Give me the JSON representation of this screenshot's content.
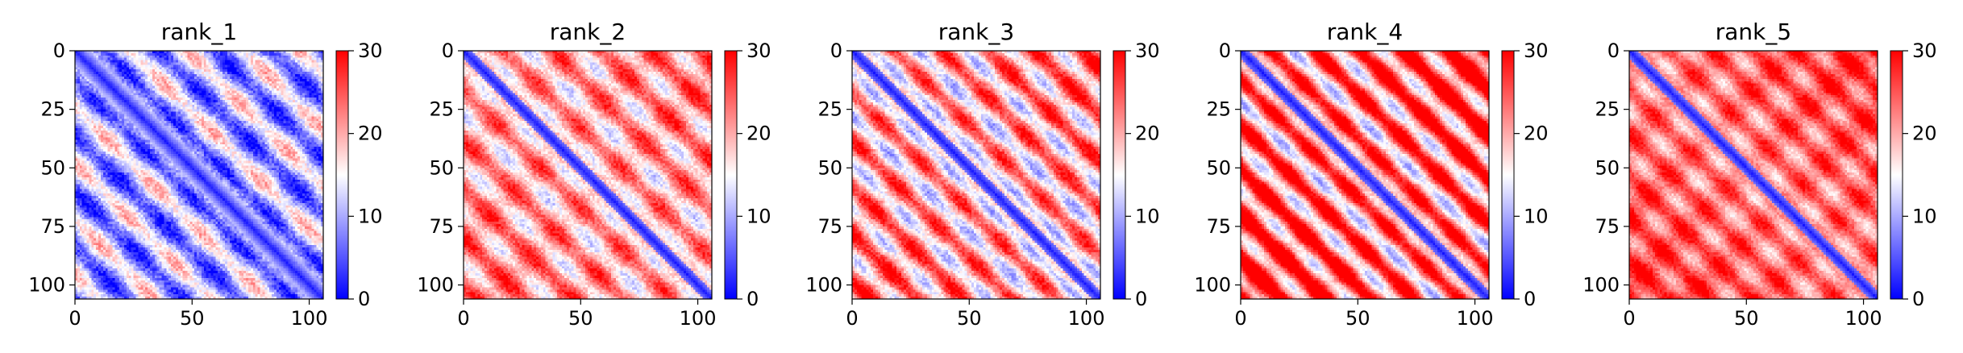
{
  "chart_data": [
    {
      "type": "heatmap",
      "title": "rank_1",
      "x_ticks": [
        0,
        50,
        100
      ],
      "y_ticks": [
        0,
        25,
        50,
        75,
        100
      ],
      "xlim": [
        0,
        106
      ],
      "ylim": [
        106,
        0
      ],
      "matrix_size": 106,
      "colormap": "bwr",
      "colorbar": {
        "vmin": 0,
        "vmax": 30,
        "ticks": [
          0,
          10,
          20,
          30
        ]
      },
      "pattern": {
        "diag_width": 6,
        "base": 10.5,
        "stripe_amp": 7.5,
        "stripe_period": 24,
        "stripe_phase": 0,
        "edge_gain": 0,
        "noise": 3,
        "seed": 11
      }
    },
    {
      "type": "heatmap",
      "title": "rank_2",
      "x_ticks": [
        0,
        50,
        100
      ],
      "y_ticks": [
        0,
        25,
        50,
        75,
        100
      ],
      "xlim": [
        0,
        106
      ],
      "ylim": [
        106,
        0
      ],
      "matrix_size": 106,
      "colormap": "bwr",
      "colorbar": {
        "vmin": 0,
        "vmax": 30,
        "ticks": [
          0,
          10,
          20,
          30
        ]
      },
      "pattern": {
        "diag_width": 3.2,
        "base": 19,
        "stripe_amp": 6,
        "stripe_period": 21,
        "stripe_phase": 1.2,
        "edge_gain": 4,
        "noise": 2.5,
        "seed": 22
      }
    },
    {
      "type": "heatmap",
      "title": "rank_3",
      "x_ticks": [
        0,
        50,
        100
      ],
      "y_ticks": [
        0,
        25,
        50,
        75,
        100
      ],
      "xlim": [
        0,
        106
      ],
      "ylim": [
        106,
        0
      ],
      "matrix_size": 106,
      "colormap": "bwr",
      "colorbar": {
        "vmin": 0,
        "vmax": 30,
        "ticks": [
          0,
          10,
          20,
          30
        ]
      },
      "pattern": {
        "diag_width": 3.2,
        "base": 18,
        "stripe_amp": 8,
        "stripe_period": 20,
        "stripe_phase": 0.6,
        "edge_gain": 5,
        "noise": 2.5,
        "seed": 33
      }
    },
    {
      "type": "heatmap",
      "title": "rank_4",
      "x_ticks": [
        0,
        50,
        100
      ],
      "y_ticks": [
        0,
        25,
        50,
        75,
        100
      ],
      "xlim": [
        0,
        106
      ],
      "ylim": [
        106,
        0
      ],
      "matrix_size": 106,
      "colormap": "bwr",
      "colorbar": {
        "vmin": 0,
        "vmax": 30,
        "ticks": [
          0,
          10,
          20,
          30
        ]
      },
      "pattern": {
        "diag_width": 3.4,
        "base": 20,
        "stripe_amp": 10,
        "stripe_period": 19,
        "stripe_phase": 2.1,
        "edge_gain": 8,
        "noise": 2,
        "seed": 44
      }
    },
    {
      "type": "heatmap",
      "title": "rank_5",
      "x_ticks": [
        0,
        50,
        100
      ],
      "y_ticks": [
        0,
        25,
        50,
        75,
        100
      ],
      "xlim": [
        0,
        106
      ],
      "ylim": [
        106,
        0
      ],
      "matrix_size": 106,
      "colormap": "bwr",
      "colorbar": {
        "vmin": 0,
        "vmax": 30,
        "ticks": [
          0,
          10,
          20,
          30
        ]
      },
      "pattern": {
        "diag_width": 3.2,
        "base": 22,
        "stripe_amp": 4.5,
        "stripe_period": 18,
        "stripe_phase": 0.3,
        "edge_gain": 5,
        "noise": 2,
        "seed": 55
      }
    }
  ]
}
